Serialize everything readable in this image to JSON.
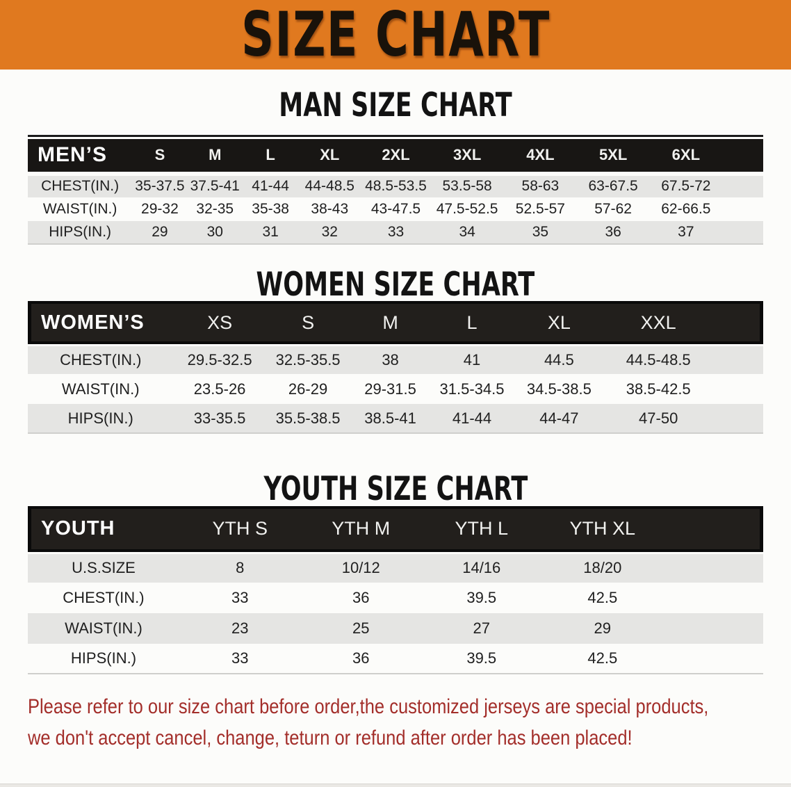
{
  "banner": {
    "title": "SIZE CHART"
  },
  "sections": {
    "men_heading": "MAN SIZE CHART",
    "women_heading": "WOMEN SIZE CHART",
    "youth_heading": "YOUTH SIZE CHART"
  },
  "tables": {
    "men": {
      "label": "MEN’S",
      "sizes": [
        "S",
        "M",
        "L",
        "XL",
        "2XL",
        "3XL",
        "4XL",
        "5XL",
        "6XL"
      ],
      "rows": [
        {
          "label": "CHEST(IN.)",
          "values": [
            "35-37.5",
            "37.5-41",
            "41-44",
            "44-48.5",
            "48.5-53.5",
            "53.5-58",
            "58-63",
            "63-67.5",
            "67.5-72"
          ]
        },
        {
          "label": "WAIST(IN.)",
          "values": [
            "29-32",
            "32-35",
            "35-38",
            "38-43",
            "43-47.5",
            "47.5-52.5",
            "52.5-57",
            "57-62",
            "62-66.5"
          ]
        },
        {
          "label": "HIPS(IN.)",
          "values": [
            "29",
            "30",
            "31",
            "32",
            "33",
            "34",
            "35",
            "36",
            "37"
          ]
        }
      ]
    },
    "women": {
      "label": "WOMEN’S",
      "sizes": [
        "XS",
        "S",
        "M",
        "L",
        "XL",
        "XXL"
      ],
      "rows": [
        {
          "label": "CHEST(IN.)",
          "values": [
            "29.5-32.5",
            "32.5-35.5",
            "38",
            "41",
            "44.5",
            "44.5-48.5"
          ]
        },
        {
          "label": "WAIST(IN.)",
          "values": [
            "23.5-26",
            "26-29",
            "29-31.5",
            "31.5-34.5",
            "34.5-38.5",
            "38.5-42.5"
          ]
        },
        {
          "label": "HIPS(IN.)",
          "values": [
            "33-35.5",
            "35.5-38.5",
            "38.5-41",
            "41-44",
            "44-47",
            "47-50"
          ]
        }
      ]
    },
    "youth": {
      "label": "YOUTH",
      "sizes": [
        "YTH S",
        "YTH M",
        "YTH L",
        "YTH XL"
      ],
      "rows": [
        {
          "label": "U.S.SIZE",
          "values": [
            "8",
            "10/12",
            "14/16",
            "18/20"
          ]
        },
        {
          "label": "CHEST(IN.)",
          "values": [
            "33",
            "36",
            "39.5",
            "42.5"
          ]
        },
        {
          "label": "WAIST(IN.)",
          "values": [
            "23",
            "25",
            "27",
            "29"
          ]
        },
        {
          "label": "HIPS(IN.)",
          "values": [
            "33",
            "36",
            "39.5",
            "42.5"
          ]
        }
      ]
    }
  },
  "disclaimer": {
    "line1": "Please refer to our size chart before order,the customized jerseys are special products,",
    "line2": "we don't accept cancel, change, teturn or refund after order has been placed!"
  },
  "colors": {
    "banner_orange": "#e0791f",
    "banner_text": "#19120a",
    "header_black": "#1b1815",
    "band_gray": "#e5e5e3",
    "page_background": "#fcfcfa",
    "disclaimer_red": "#a32e2a"
  }
}
